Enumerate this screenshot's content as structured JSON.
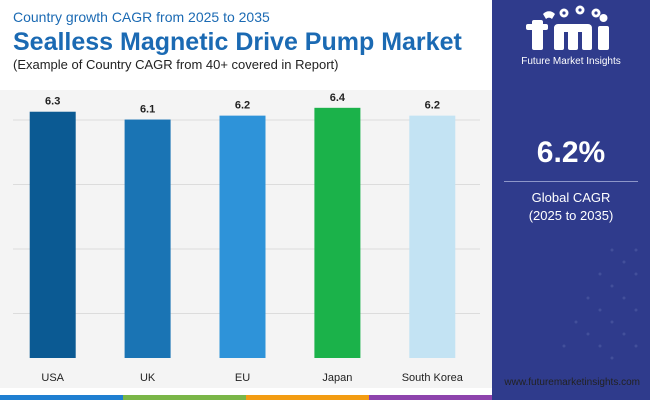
{
  "header": {
    "subtitle_top": "Country growth CAGR from 2025 to 2035",
    "title": "Sealless Magnetic Drive Pump Market",
    "subtitle_bottom": "(Example of Country CAGR from 40+ covered in Report)"
  },
  "sidebar": {
    "logo_letters": "fmi",
    "logo_name": "Future Market Insights",
    "global_cagr_value": "6.2%",
    "global_cagr_label": "Global CAGR",
    "global_cagr_period": "(2025 to 2035)"
  },
  "footer": {
    "website": "www.futuremarketinsights.com"
  },
  "colors": {
    "brand_blue": "#1b6ab3",
    "sidebar_bg": "#2f3b8c",
    "footer_segments": [
      "#1f7fd1",
      "#7ab648",
      "#f39c12",
      "#8e44ad"
    ]
  },
  "chart_data": {
    "type": "bar",
    "title": "Sealless Magnetic Drive Pump Market",
    "categories": [
      "USA",
      "UK",
      "EU",
      "Japan",
      "South Korea"
    ],
    "values": [
      6.3,
      6.1,
      6.2,
      6.4,
      6.2
    ],
    "value_labels": [
      "6.3",
      "6.1",
      "6.2",
      "6.4",
      "6.2"
    ],
    "bar_colors": [
      "#0b5a93",
      "#1a74b4",
      "#2e93d9",
      "#1bb24a",
      "#c3e3f3"
    ],
    "ylim": [
      0,
      6.6
    ],
    "grid": true,
    "legend": "none",
    "xlabel": "",
    "ylabel": ""
  }
}
